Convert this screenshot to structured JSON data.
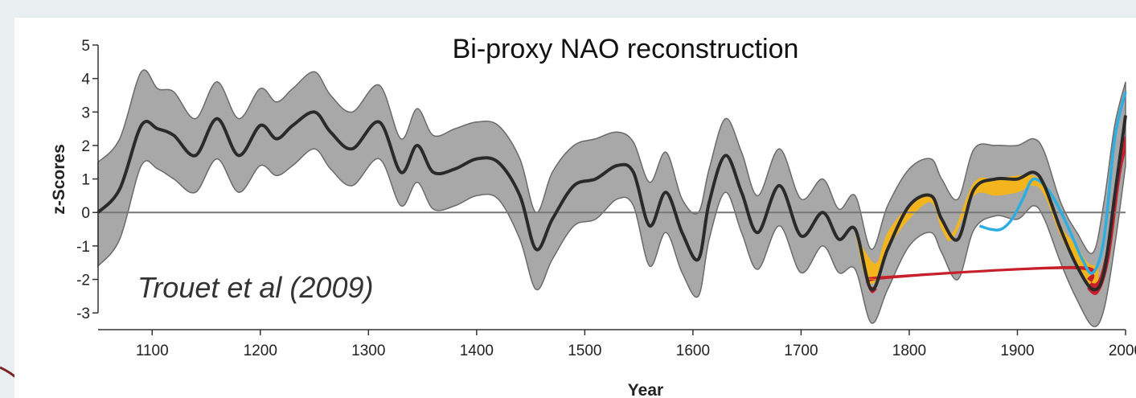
{
  "chart_data": {
    "type": "line",
    "title": "Bi-proxy NAO reconstruction",
    "annotation": "Trouet et al (2009)",
    "xlabel": "Year",
    "ylabel": "z-Scores",
    "xlim": [
      1050,
      2000
    ],
    "ylim": [
      -3.5,
      5
    ],
    "x_ticks": [
      1100,
      1200,
      1300,
      1400,
      1500,
      1600,
      1700,
      1800,
      1900,
      2000
    ],
    "x_tick_labels": [
      "1100",
      "1200",
      "1300",
      "1400",
      "1500",
      "1600",
      "1700",
      "1800",
      "1900",
      "2000"
    ],
    "y_ticks": [
      5,
      4,
      3,
      2,
      1,
      0,
      -1,
      -2,
      -3
    ],
    "y_tick_labels": [
      "5",
      "4",
      "3",
      "2",
      "1",
      "0",
      "-1",
      "-2",
      "-3"
    ],
    "zero_line": true,
    "series": [
      {
        "role": "reconstruction mean",
        "x": [
          1050,
          1070,
          1090,
          1105,
          1120,
          1140,
          1160,
          1180,
          1200,
          1215,
          1230,
          1250,
          1265,
          1285,
          1310,
          1330,
          1345,
          1360,
          1380,
          1400,
          1420,
          1440,
          1455,
          1470,
          1490,
          1510,
          1530,
          1545,
          1560,
          1575,
          1590,
          1605,
          1615,
          1630,
          1645,
          1660,
          1680,
          1700,
          1720,
          1735,
          1750,
          1765,
          1780,
          1800,
          1820,
          1830,
          1845,
          1860,
          1880,
          1900,
          1915,
          1925,
          1940,
          1955,
          1970,
          1980,
          1990,
          2000
        ],
        "y": [
          0,
          0.7,
          2.6,
          2.5,
          2.3,
          1.7,
          2.8,
          1.7,
          2.6,
          2.2,
          2.6,
          3.0,
          2.4,
          1.9,
          2.7,
          1.2,
          2.0,
          1.2,
          1.3,
          1.6,
          1.5,
          0.5,
          -1.1,
          -0.2,
          0.8,
          1.0,
          1.4,
          1.2,
          -0.4,
          0.6,
          -0.6,
          -1.4,
          0.3,
          1.7,
          0.6,
          -0.6,
          0.8,
          -0.7,
          0.0,
          -0.8,
          -0.5,
          -2.3,
          -1.1,
          0.2,
          0.5,
          -0.2,
          -0.8,
          0.7,
          1.0,
          1.0,
          1.2,
          0.8,
          -0.5,
          -1.6,
          -2.3,
          -1.8,
          0.5,
          2.9
        ]
      },
      {
        "role": "uncertainty band",
        "x": [
          1050,
          1070,
          1090,
          1105,
          1120,
          1140,
          1160,
          1180,
          1200,
          1215,
          1230,
          1250,
          1265,
          1285,
          1310,
          1330,
          1345,
          1360,
          1380,
          1400,
          1420,
          1440,
          1455,
          1470,
          1490,
          1510,
          1530,
          1545,
          1560,
          1575,
          1590,
          1605,
          1615,
          1630,
          1645,
          1660,
          1680,
          1700,
          1720,
          1735,
          1750,
          1765,
          1780,
          1800,
          1820,
          1830,
          1845,
          1860,
          1880,
          1900,
          1915,
          1925,
          1940,
          1955,
          1970,
          1980,
          1990,
          2000
        ],
        "upper": [
          1.5,
          2.2,
          4.2,
          3.7,
          3.6,
          2.8,
          3.9,
          2.8,
          3.7,
          3.3,
          3.7,
          4.2,
          3.5,
          3.0,
          3.8,
          2.2,
          3.1,
          2.3,
          2.5,
          2.7,
          2.6,
          1.6,
          0.0,
          1.2,
          2.0,
          2.2,
          2.4,
          2.1,
          0.9,
          1.8,
          0.4,
          0.0,
          1.3,
          2.8,
          1.8,
          0.5,
          1.9,
          0.4,
          1.0,
          0.1,
          0.5,
          -1.1,
          0.2,
          1.3,
          1.6,
          1.0,
          0.4,
          1.9,
          2.0,
          2.0,
          2.2,
          1.8,
          0.3,
          -0.6,
          -1.2,
          0.3,
          2.6,
          3.9
        ],
        "lower": [
          -1.6,
          -0.8,
          1.4,
          1.3,
          1.0,
          0.6,
          1.6,
          0.6,
          1.4,
          1.1,
          1.4,
          1.9,
          1.3,
          0.8,
          1.6,
          0.2,
          0.9,
          0.1,
          0.2,
          0.5,
          0.4,
          -0.8,
          -2.3,
          -1.4,
          -0.4,
          -0.2,
          0.4,
          0.2,
          -1.6,
          -0.6,
          -1.8,
          -2.5,
          -0.8,
          0.6,
          -0.6,
          -1.7,
          -0.4,
          -1.8,
          -1.0,
          -1.8,
          -1.7,
          -3.3,
          -2.3,
          -1.0,
          -0.6,
          -1.2,
          -2.0,
          -0.5,
          -0.1,
          -0.2,
          0.2,
          -0.2,
          -1.5,
          -2.6,
          -3.4,
          -2.9,
          -1.0,
          1.4
        ]
      },
      {
        "role": "yellow fill (recent)",
        "x": [
          1750,
          1760,
          1770,
          1780,
          1800,
          1820,
          1830,
          1840,
          1860,
          1880,
          1900,
          1915,
          1925,
          1940,
          1955,
          1965,
          1975
        ],
        "top": [
          -0.6,
          -1.2,
          -1.5,
          -0.6,
          0.2,
          0.5,
          -0.2,
          -0.6,
          0.9,
          1.0,
          1.1,
          1.1,
          0.8,
          -0.4,
          -1.0,
          -1.5,
          -1.6
        ],
        "bottom": [
          -0.6,
          -2.0,
          -2.0,
          -1.1,
          -0.2,
          0.3,
          -0.5,
          -0.8,
          0.5,
          0.5,
          0.6,
          0.8,
          0.5,
          -0.7,
          -1.6,
          -2.1,
          -2.1
        ]
      },
      {
        "role": "red fill (recent)",
        "x": [
          1760,
          1765,
          1770,
          1775,
          1955,
          1965,
          1975,
          1985,
          1995,
          2000
        ],
        "top": [
          -2.0,
          -2.0,
          -2.0,
          -1.9,
          -1.6,
          -2.0,
          -2.0,
          -0.6,
          1.8,
          2.3
        ],
        "bottom": [
          -2.1,
          -2.4,
          -2.3,
          -2.0,
          -1.7,
          -2.3,
          -2.4,
          -1.4,
          1.0,
          1.8
        ]
      },
      {
        "role": "instrumental (blue)",
        "x": [
          1865,
          1875,
          1885,
          1895,
          1905,
          1915,
          1930,
          1945,
          1960,
          1970,
          1980,
          1990,
          2000
        ],
        "y": [
          -0.4,
          -0.5,
          -0.5,
          -0.2,
          0.4,
          1.0,
          0.6,
          -0.3,
          -1.4,
          -1.8,
          -0.8,
          2.2,
          3.6
        ]
      }
    ]
  }
}
